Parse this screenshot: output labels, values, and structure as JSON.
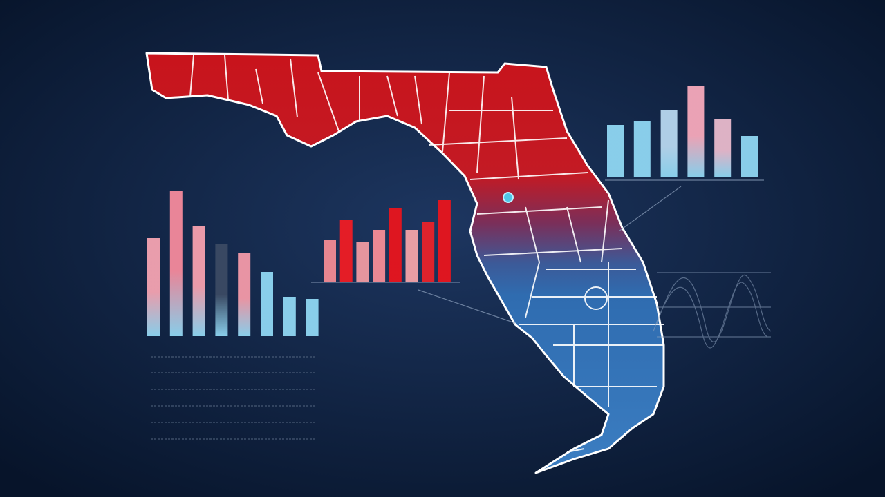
{
  "chart_data": [
    {
      "type": "bar",
      "values": [
        142,
        210,
        160,
        134,
        121,
        93,
        57,
        54
      ],
      "colors": [
        "#f4a3b1",
        "#f48a9c",
        "#f5a0ae",
        "#3b4a63",
        "#f39aa8",
        "#8fd6f2",
        "#8fd6f2",
        "#8fd6f2"
      ]
    },
    {
      "type": "bar",
      "values": [
        61,
        90,
        57,
        75,
        106,
        75,
        87,
        118
      ],
      "colors": [
        "#f28a93",
        "#ef1c24",
        "#f09aa2",
        "#f58c96",
        "#e8141d",
        "#f3a3a8",
        "#e8222a",
        "#e8141d"
      ]
    },
    {
      "type": "bar",
      "values": [
        75,
        81,
        96,
        131,
        84,
        59
      ],
      "colors": [
        "#8fd6f2",
        "#8fd6f2",
        "#b7d7ee",
        "#f6a9bb",
        "#e8b9cc",
        "#8fd6f2"
      ]
    }
  ]
}
